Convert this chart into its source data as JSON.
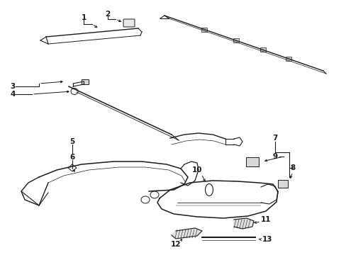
{
  "background_color": "#ffffff",
  "line_color": "#1a1a1a",
  "label_color": "#1a1a1a",
  "fig_width": 4.89,
  "fig_height": 3.6,
  "dpi": 100
}
